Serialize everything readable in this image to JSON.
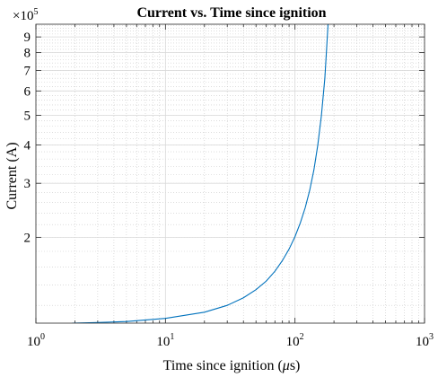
{
  "chart_data": {
    "type": "line",
    "title": "Current vs. Time since ignition",
    "xlabel_prefix": "Time since ignition (",
    "xlabel_mu": "μ",
    "xlabel_suffix": "s)",
    "ylabel": "Current (A)",
    "x_scale": "log",
    "y_scale": "log",
    "xlim": [
      1,
      1000
    ],
    "ylim": [
      105000,
      990000
    ],
    "grid": true,
    "minor_grid": true,
    "y_multiplier_base": "×10",
    "y_multiplier_exp": "5",
    "x_ticks": [
      {
        "value": 1,
        "base": "10",
        "exp": "0"
      },
      {
        "value": 10,
        "base": "10",
        "exp": "1"
      },
      {
        "value": 100,
        "base": "10",
        "exp": "2"
      },
      {
        "value": 1000,
        "base": "10",
        "exp": "3"
      }
    ],
    "y_ticks": [
      {
        "value": 200000,
        "label": "2"
      },
      {
        "value": 300000,
        "label": "3"
      },
      {
        "value": 400000,
        "label": "4"
      },
      {
        "value": 500000,
        "label": "5"
      },
      {
        "value": 600000,
        "label": "6"
      },
      {
        "value": 700000,
        "label": "7"
      },
      {
        "value": 800000,
        "label": "8"
      },
      {
        "value": 900000,
        "label": "9"
      }
    ],
    "series": [
      {
        "color": "#0072BD",
        "x": [
          1.9,
          3,
          5,
          10,
          20,
          30,
          40,
          50,
          60,
          70,
          80,
          90,
          100,
          110,
          120,
          130,
          140,
          150,
          160,
          170,
          180
        ],
        "y": [
          105000,
          105500,
          106300,
          108800,
          114000,
          120000,
          127000,
          135000,
          144000,
          155000,
          168000,
          183000,
          201000,
          223000,
          250000,
          285000,
          332000,
          400000,
          500000,
          660000,
          990000
        ]
      }
    ]
  }
}
